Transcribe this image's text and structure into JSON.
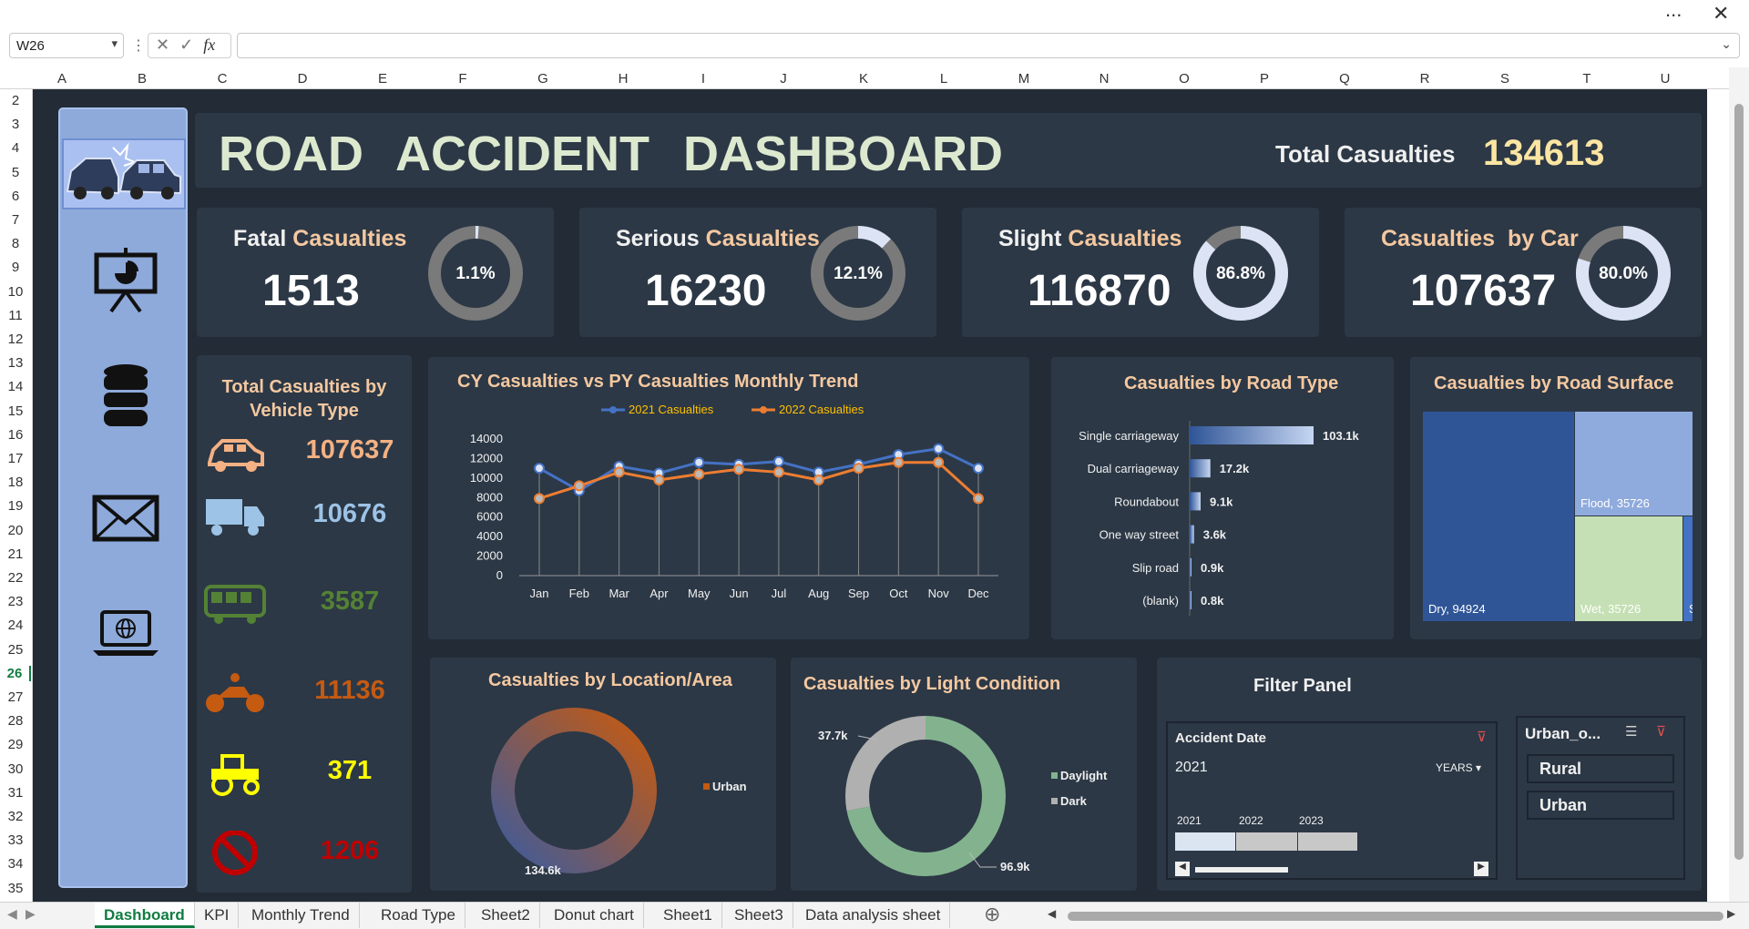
{
  "excel": {
    "name_box": "W26",
    "more_icon": "...",
    "close_icon": "✕",
    "fx_label": "fx",
    "columns": [
      "A",
      "B",
      "C",
      "D",
      "E",
      "F",
      "G",
      "H",
      "I",
      "J",
      "K",
      "L",
      "M",
      "N",
      "O",
      "P",
      "Q",
      "R",
      "S",
      "T",
      "U"
    ],
    "rows": [
      "2",
      "3",
      "4",
      "5",
      "6",
      "7",
      "8",
      "9",
      "10",
      "11",
      "12",
      "13",
      "14",
      "15",
      "16",
      "17",
      "18",
      "19",
      "20",
      "21",
      "22",
      "23",
      "24",
      "25",
      "26",
      "27",
      "28",
      "29",
      "30",
      "31",
      "32",
      "33",
      "34",
      "35"
    ],
    "selected_row": "26",
    "tabs": [
      "Dashboard",
      "KPI",
      "Monthly Trend",
      "Road Type",
      "Sheet2",
      "Donut chart",
      "Sheet1",
      "Sheet3",
      "Data analysis sheet"
    ],
    "active_tab": "Dashboard"
  },
  "header": {
    "title": "ROAD ACCIDENT   DASHBOARD",
    "total_label": "Total Casualties",
    "total_value": "134613"
  },
  "kpis": [
    {
      "label_main": "Fatal ",
      "label_hl": "Casualties",
      "value": "1513",
      "pct_text": "1.1%",
      "pct": 1.1
    },
    {
      "label_main": "Serious ",
      "label_hl": "Casualties",
      "value": "16230",
      "pct_text": "12.1%",
      "pct": 12.1
    },
    {
      "label_main": "Slight ",
      "label_hl": "Casualties",
      "value": "116870",
      "pct_text": "86.8%",
      "pct": 86.8
    },
    {
      "label_main": "",
      "label_hl": "Casualties",
      "label_tail": "  by Car",
      "value": "107637",
      "pct_text": "80.0%",
      "pct": 80.0
    }
  ],
  "vehicle": {
    "title": "Total Casualties by Vehicle Type",
    "items": [
      {
        "icon": "car-icon",
        "value": "107637",
        "color": "#f4b183"
      },
      {
        "icon": "truck-icon",
        "value": "10676",
        "color": "#9dc3e6"
      },
      {
        "icon": "bus-icon",
        "value": "3587",
        "color": "#548235"
      },
      {
        "icon": "motorcycle-icon",
        "value": "11136",
        "color": "#c55a11"
      },
      {
        "icon": "tractor-icon",
        "value": "371",
        "color": "#ffff00"
      },
      {
        "icon": "prohibited-icon",
        "value": "1206",
        "color": "#c00000"
      }
    ]
  },
  "trend": {
    "title": "CY Casualties vs PY Casualties Monthly Trend"
  },
  "roadtype": {
    "title": "Casualties by Road Type"
  },
  "surface": {
    "title": "Casualties by Road Surface"
  },
  "location": {
    "title": "Casualties by Location/Area"
  },
  "light": {
    "title": "Casualties by Light Condition"
  },
  "filter": {
    "title": "Filter Panel",
    "date_header": "Accident Date",
    "date_value": "2021",
    "years_label": "YEARS",
    "urban_header": "Urban_o...",
    "urban_options": [
      "Rural",
      "Urban"
    ]
  },
  "chart_data": [
    {
      "type": "line",
      "title": "CY Casualties vs PY Casualties Monthly Trend",
      "categories": [
        "Jan",
        "Feb",
        "Mar",
        "Apr",
        "May",
        "Jun",
        "Jul",
        "Aug",
        "Sep",
        "Oct",
        "Nov",
        "Dec"
      ],
      "ylim": [
        0,
        14000
      ],
      "yticks": [
        "0",
        "2000",
        "4000",
        "6000",
        "8000",
        "10000",
        "12000",
        "14000"
      ],
      "series": [
        {
          "name": "2021 Casualties",
          "color": "#4472c4",
          "values": [
            11000,
            8700,
            11200,
            10500,
            11600,
            11400,
            11700,
            10600,
            11400,
            12400,
            13000,
            11000
          ]
        },
        {
          "name": "2022 Casualties",
          "color": "#ed7d31",
          "values": [
            7900,
            9200,
            10600,
            9800,
            10400,
            10900,
            10600,
            9800,
            11000,
            11600,
            11600,
            7900
          ]
        }
      ],
      "legend": "top"
    },
    {
      "type": "bar",
      "title": "Casualties by Road Type",
      "categories": [
        "Single carriageway",
        "Dual carriageway",
        "Roundabout",
        "One way street",
        "Slip road",
        "(blank)"
      ],
      "values": [
        103.1,
        17.2,
        9.1,
        3.6,
        0.9,
        0.8
      ],
      "labels": [
        "103.1k",
        "17.2k",
        "9.1k",
        "3.6k",
        "0.9k",
        "0.8k"
      ]
    },
    {
      "type": "treemap",
      "title": "Casualties by Road Surface",
      "items": [
        {
          "name": "Dry",
          "value": 94924,
          "label": "Dry, 94924",
          "color": "#2f5597"
        },
        {
          "name": "Flood",
          "value": 35726,
          "label": "Flood, 35726",
          "color": "#8faadc"
        },
        {
          "name": "Wet",
          "value": 35726,
          "label": "Wet, 35726",
          "color": "#c5e0b4"
        },
        {
          "name": "S...",
          "value": 3000,
          "label": "S...",
          "color": "#4472c4"
        }
      ]
    },
    {
      "type": "pie",
      "title": "Casualties by Location/Area",
      "slices": [
        {
          "name": "Urban",
          "value": 134.6,
          "label": "134.6k",
          "color": "#c55a11"
        }
      ],
      "legend": "right"
    },
    {
      "type": "pie",
      "title": "Casualties by Light Condition",
      "slices": [
        {
          "name": "Daylight",
          "value": 96.9,
          "label": "96.9k",
          "color": "#82b38e"
        },
        {
          "name": "Dark",
          "value": 37.7,
          "label": "37.7k",
          "color": "#b0b0b0"
        }
      ],
      "legend": "right"
    }
  ]
}
